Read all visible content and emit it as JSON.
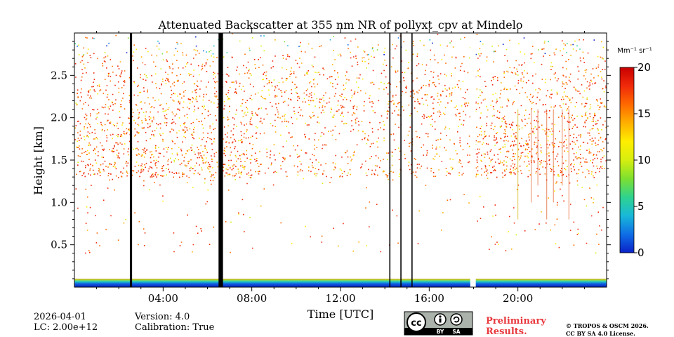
{
  "chart_data": {
    "type": "heatmap",
    "title": "Attenuated Backscatter at 355 nm NR of pollyxt_cpv at Mindelo",
    "xlabel": "Time [UTC]",
    "ylabel": "Height [km]",
    "xlim_hours": [
      0,
      24
    ],
    "ylim_km": [
      0,
      3.0
    ],
    "x_ticks": [
      {
        "hour": 4,
        "label": "04:00"
      },
      {
        "hour": 8,
        "label": "08:00"
      },
      {
        "hour": 12,
        "label": "12:00"
      },
      {
        "hour": 16,
        "label": "16:00"
      },
      {
        "hour": 20,
        "label": "20:00"
      }
    ],
    "y_ticks": [
      {
        "km": 0.5,
        "label": "0.5"
      },
      {
        "km": 1.0,
        "label": "1.0"
      },
      {
        "km": 1.5,
        "label": "1.5"
      },
      {
        "km": 2.0,
        "label": "2.0"
      },
      {
        "km": 2.5,
        "label": "2.5"
      }
    ],
    "colorbar": {
      "unit_label": "Mm⁻¹ sr⁻¹",
      "range": [
        0,
        20
      ],
      "ticks": [
        {
          "value": 0,
          "label": "0"
        },
        {
          "value": 5,
          "label": "5"
        },
        {
          "value": 10,
          "label": "10"
        },
        {
          "value": 15,
          "label": "15"
        },
        {
          "value": 20,
          "label": "20"
        }
      ],
      "colors": [
        "#0a22c8",
        "#0f6ee6",
        "#18b8d8",
        "#2fd38f",
        "#7ee030",
        "#d6ee10",
        "#ffee00",
        "#ffb000",
        "#ff6a00",
        "#f02a0a",
        "#c80000"
      ]
    },
    "cloud_base_km": 1.3,
    "near_surface_layer_km": [
      0.0,
      0.1
    ],
    "missing_data_hours": [
      [
        2.5,
        2.6
      ],
      [
        6.5,
        6.7
      ],
      [
        14.2,
        14.25
      ],
      [
        14.7,
        14.75
      ],
      [
        15.2,
        15.25
      ]
    ],
    "gap_hours": [
      [
        17.85,
        18.1
      ]
    ]
  },
  "footer": {
    "date": "2026-04-01",
    "lc": "LC: 2.00e+12",
    "version": "Version: 4.0",
    "calibration": "Calibration: True",
    "preliminary_line1": "Preliminary",
    "preliminary_line2": "Results.",
    "copyright_line1": "© TROPOS & OSCM 2026.",
    "copyright_line2": "CC BY SA 4.0 License.",
    "cc_badge": {
      "cc": "cc",
      "by": "BY",
      "sa": "SA"
    }
  }
}
